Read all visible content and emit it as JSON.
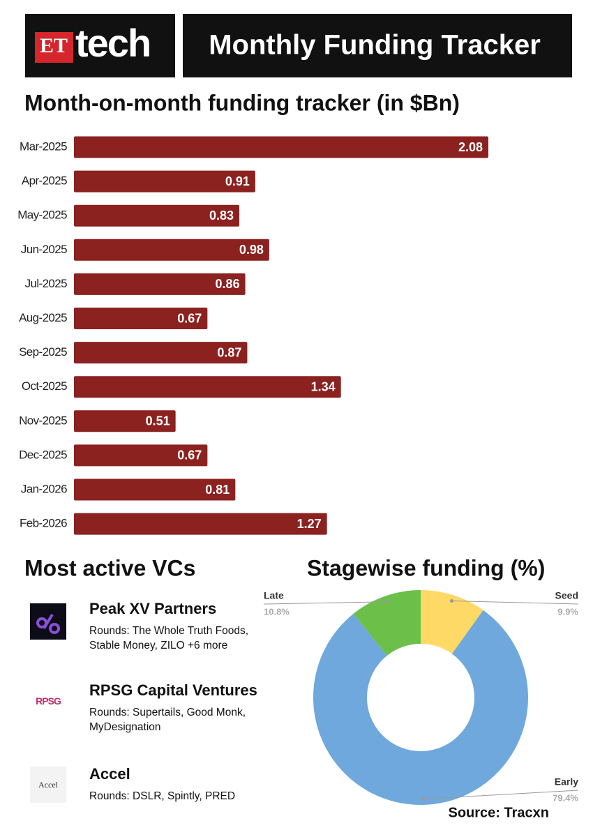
{
  "header": {
    "logo_et": "ET",
    "logo_tech": "tech",
    "title": "Monthly Funding Tracker"
  },
  "chart_data": [
    {
      "type": "bar",
      "title": "Month-on-month funding tracker (in $Bn)",
      "categories": [
        "Mar-2025",
        "Apr-2025",
        "May-2025",
        "Jun-2025",
        "Jul-2025",
        "Aug-2025",
        "Sep-2025",
        "Oct-2025",
        "Nov-2025",
        "Dec-2025",
        "Jan-2026",
        "Feb-2026"
      ],
      "values": [
        2.08,
        0.91,
        0.83,
        0.98,
        0.86,
        0.67,
        0.87,
        1.34,
        0.51,
        0.67,
        0.81,
        1.27
      ],
      "color": "#8b2220"
    },
    {
      "type": "pie",
      "title": "Stagewise funding (%)",
      "categories": [
        "Seed",
        "Early",
        "Late"
      ],
      "values": [
        9.9,
        79.4,
        10.8
      ],
      "value_labels": [
        "9.9%",
        "79.4%",
        "10.8%"
      ],
      "colors": [
        "#ffd966",
        "#6fa8dc",
        "#6cc04a"
      ],
      "donut": true
    }
  ],
  "vcs": {
    "title": "Most active VCs",
    "items": [
      {
        "name": "Peak XV Partners",
        "rounds": "Rounds: The Whole Truth Foods, Stable Money, ZILO +6 more"
      },
      {
        "name": "RPSG Capital Ventures",
        "logo_text": "RPSG",
        "rounds": "Rounds: Supertails, Good Monk, MyDesignation"
      },
      {
        "name": "Accel",
        "logo_text": "Accel",
        "rounds": "Rounds: DSLR, Spintly, PRED"
      }
    ]
  },
  "source": "Source: Tracxn"
}
